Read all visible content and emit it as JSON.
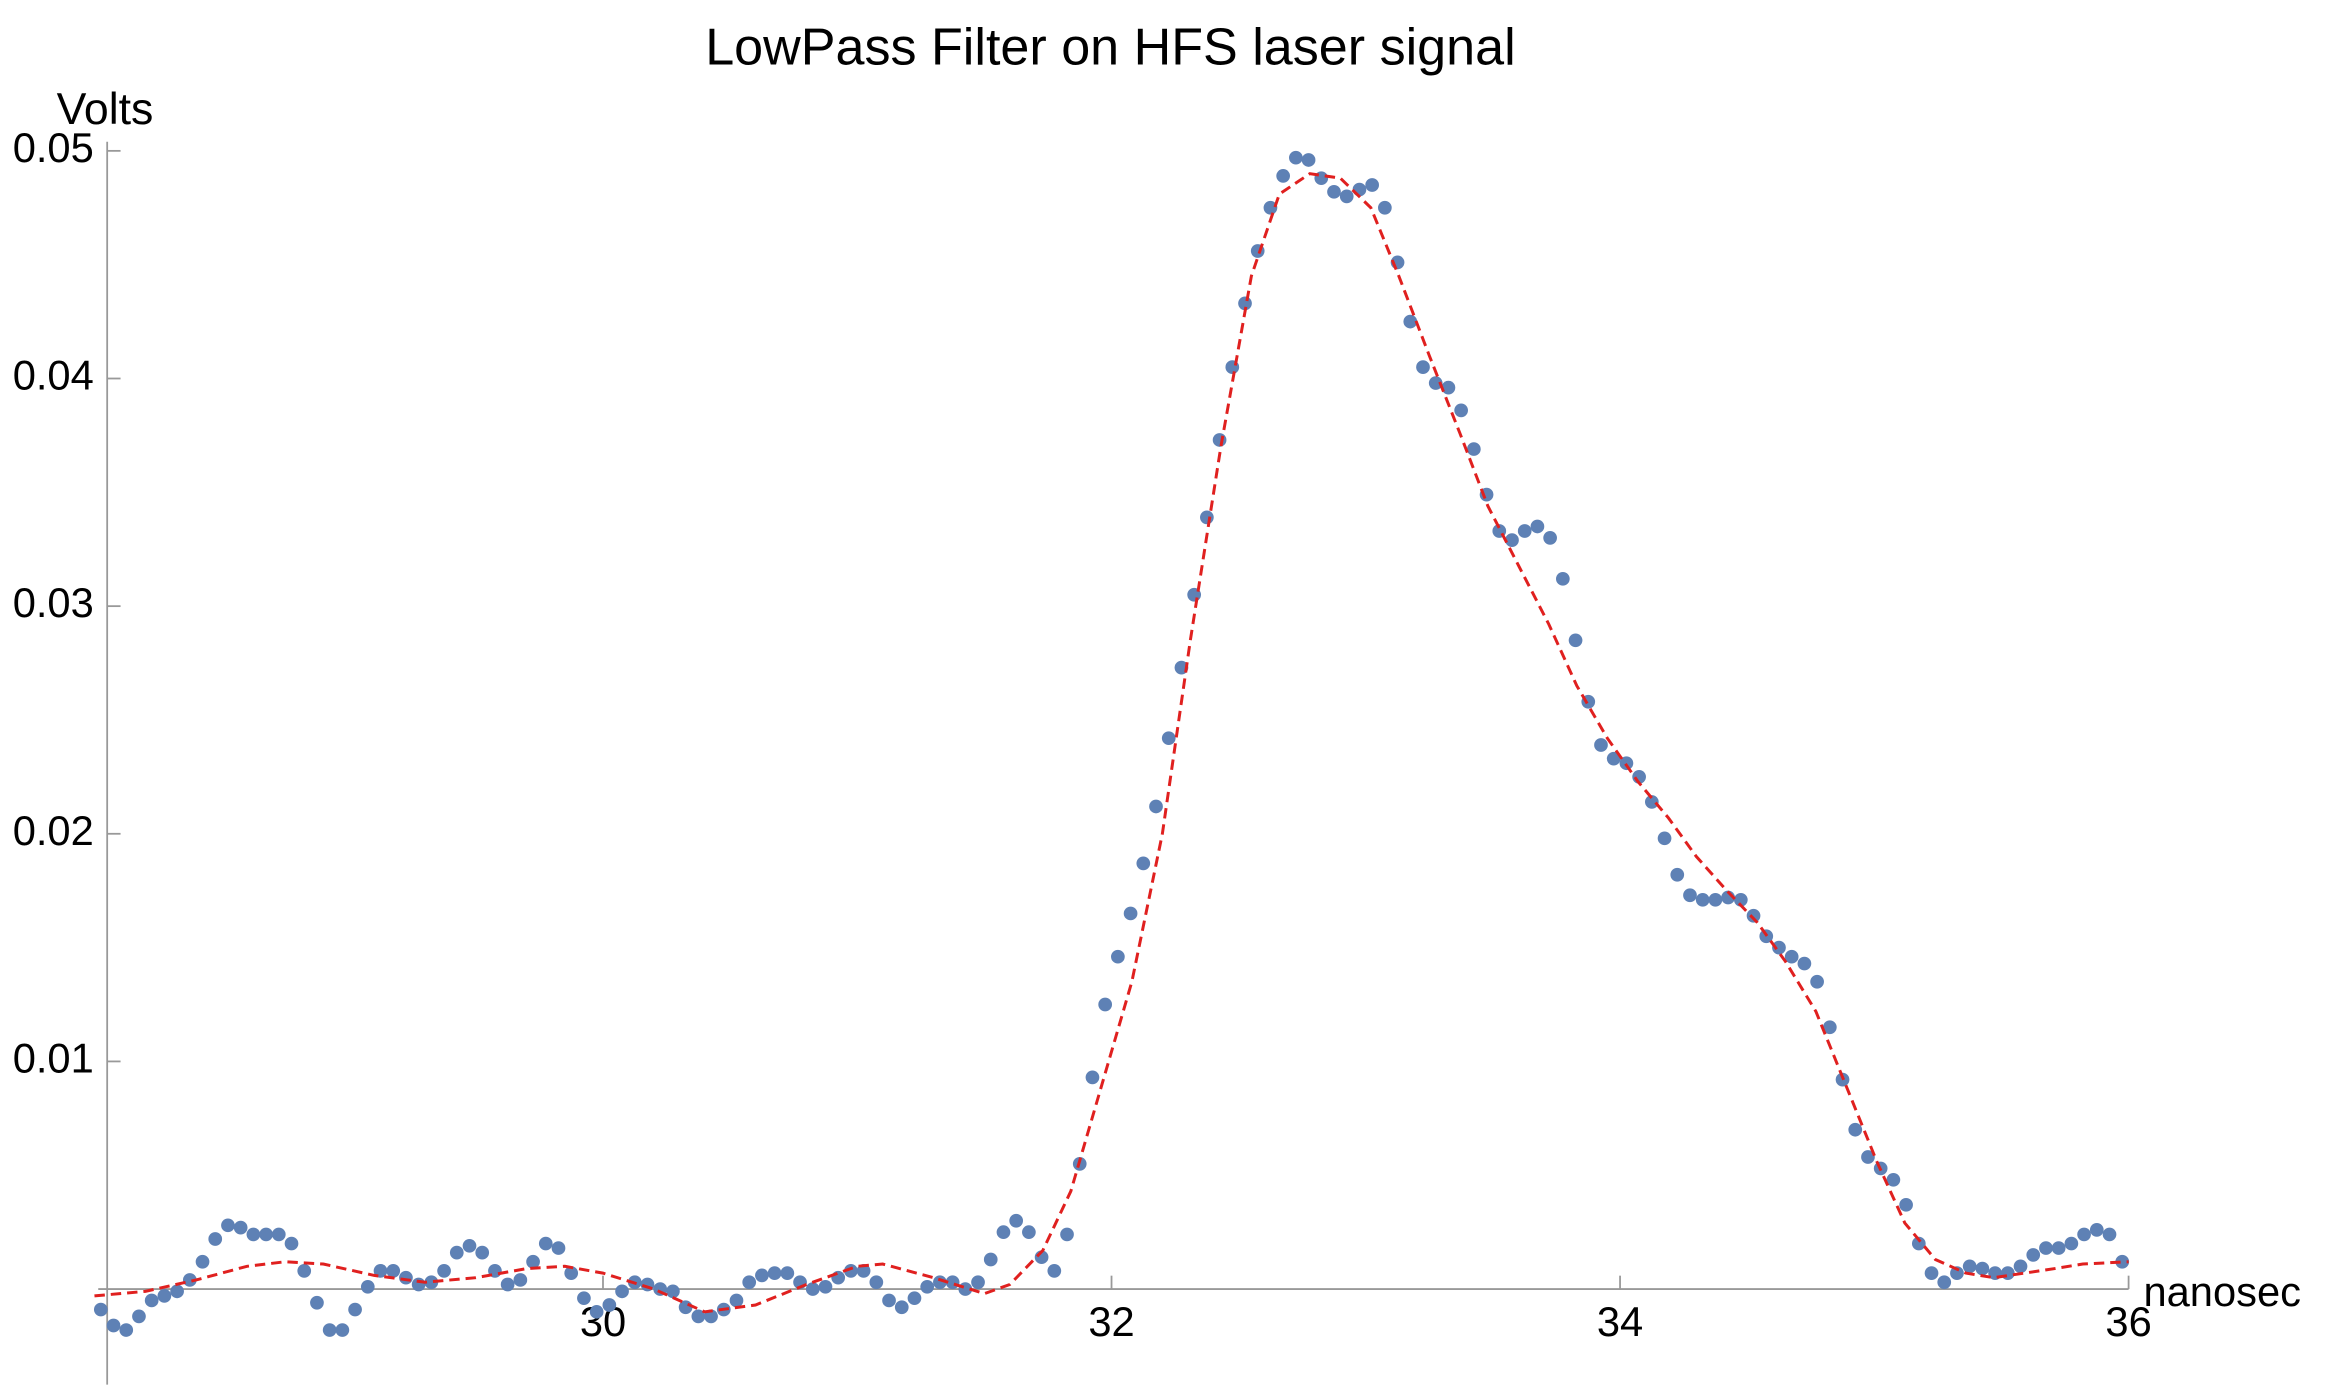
{
  "chart_data": {
    "type": "scatter",
    "title": "LowPass Filter on HFS laser signal",
    "xlabel": "nanosec",
    "ylabel": "Volts",
    "xlim": [
      28.05,
      36
    ],
    "ylim": [
      -0.0042,
      0.0504
    ],
    "xticks": [
      30,
      32,
      34,
      36
    ],
    "yticks": [
      0.01,
      0.02,
      0.03,
      0.04,
      0.05
    ],
    "series": [
      {
        "type": "scatter",
        "color": "#5e81b5",
        "x": [
          28.025,
          28.075,
          28.125,
          28.175,
          28.225,
          28.275,
          28.325,
          28.375,
          28.425,
          28.475,
          28.525,
          28.575,
          28.625,
          28.675,
          28.725,
          28.775,
          28.825,
          28.875,
          28.925,
          28.975,
          29.025,
          29.075,
          29.125,
          29.175,
          29.225,
          29.275,
          29.325,
          29.375,
          29.425,
          29.475,
          29.525,
          29.575,
          29.625,
          29.675,
          29.725,
          29.775,
          29.825,
          29.875,
          29.925,
          29.975,
          30.025,
          30.075,
          30.125,
          30.175,
          30.225,
          30.275,
          30.325,
          30.375,
          30.425,
          30.475,
          30.525,
          30.575,
          30.625,
          30.675,
          30.725,
          30.775,
          30.825,
          30.875,
          30.925,
          30.975,
          31.025,
          31.075,
          31.125,
          31.175,
          31.225,
          31.275,
          31.325,
          31.375,
          31.425,
          31.475,
          31.525,
          31.575,
          31.625,
          31.675,
          31.725,
          31.775,
          31.825,
          31.875,
          31.925,
          31.975,
          32.025,
          32.075,
          32.125,
          32.175,
          32.225,
          32.275,
          32.325,
          32.375,
          32.425,
          32.475,
          32.525,
          32.575,
          32.625,
          32.675,
          32.725,
          32.775,
          32.825,
          32.875,
          32.925,
          32.975,
          33.025,
          33.075,
          33.125,
          33.175,
          33.225,
          33.275,
          33.325,
          33.375,
          33.425,
          33.475,
          33.525,
          33.575,
          33.625,
          33.675,
          33.725,
          33.775,
          33.825,
          33.875,
          33.925,
          33.975,
          34.025,
          34.075,
          34.125,
          34.175,
          34.225,
          34.275,
          34.325,
          34.375,
          34.425,
          34.475,
          34.525,
          34.575,
          34.625,
          34.675,
          34.725,
          34.775,
          34.825,
          34.875,
          34.925,
          34.975,
          35.025,
          35.075,
          35.125,
          35.175,
          35.225,
          35.275,
          35.325,
          35.375,
          35.425,
          35.475,
          35.525,
          35.575,
          35.625,
          35.675,
          35.725,
          35.775,
          35.825,
          35.875,
          35.925,
          35.975
        ],
        "values": [
          -0.0009,
          -0.0016,
          -0.0018,
          -0.0012,
          -0.0005,
          -0.0003,
          -0.0001,
          0.0004,
          0.0012,
          0.0022,
          0.0028,
          0.0027,
          0.0024,
          0.0024,
          0.0024,
          0.002,
          0.0008,
          -0.0006,
          -0.0018,
          -0.0018,
          -0.0009,
          0.0001,
          0.0008,
          0.0008,
          0.0005,
          0.0002,
          0.0003,
          0.0008,
          0.0016,
          0.0019,
          0.0016,
          0.0008,
          0.0002,
          0.0004,
          0.0012,
          0.002,
          0.0018,
          0.0007,
          -0.0004,
          -0.001,
          -0.0007,
          -0.0001,
          0.0003,
          0.0002,
          0,
          -0.0001,
          -0.0008,
          -0.0012,
          -0.0012,
          -0.0009,
          -0.0005,
          0.0003,
          0.0006,
          0.0007,
          0.0007,
          0.0003,
          0,
          0.0001,
          0.0005,
          0.0008,
          0.0008,
          0.0003,
          -0.0005,
          -0.0008,
          -0.0004,
          0.0001,
          0.0003,
          0.0003,
          0,
          0.0003,
          0.0013,
          0.0025,
          0.003,
          0.0025,
          0.0014,
          0.0008,
          0.0024,
          0.0055,
          0.0093,
          0.0125,
          0.0146,
          0.0165,
          0.0187,
          0.0212,
          0.0242,
          0.0273,
          0.0305,
          0.0339,
          0.0373,
          0.0405,
          0.0433,
          0.0456,
          0.0475,
          0.0489,
          0.0497,
          0.0496,
          0.0488,
          0.0482,
          0.048,
          0.0483,
          0.0485,
          0.0475,
          0.0451,
          0.0425,
          0.0405,
          0.0398,
          0.0396,
          0.0386,
          0.0369,
          0.0349,
          0.0333,
          0.0329,
          0.0333,
          0.0335,
          0.033,
          0.0312,
          0.0285,
          0.0258,
          0.0239,
          0.0233,
          0.0231,
          0.0225,
          0.0214,
          0.0198,
          0.0182,
          0.0173,
          0.0171,
          0.0171,
          0.0172,
          0.0171,
          0.0164,
          0.0155,
          0.015,
          0.0146,
          0.0143,
          0.0135,
          0.0115,
          0.0092,
          0.007,
          0.0058,
          0.0053,
          0.0048,
          0.0037,
          0.002,
          0.0007,
          0.0003,
          0.0007,
          0.001,
          0.0009,
          0.0007,
          0.0007,
          0.001,
          0.0015,
          0.0018,
          0.0018,
          0.002,
          0.0024,
          0.0026,
          0.0024,
          0.0012
        ]
      },
      {
        "type": "line",
        "color": "#e0201f",
        "line_style": "dashed",
        "x": [
          28.0,
          28.2,
          28.4,
          28.6,
          28.75,
          28.9,
          29.1,
          29.3,
          29.5,
          29.7,
          29.85,
          30.0,
          30.2,
          30.4,
          30.6,
          30.8,
          31.0,
          31.1,
          31.3,
          31.5,
          31.6,
          31.73,
          31.84,
          31.96,
          32.08,
          32.2,
          32.31,
          32.43,
          32.55,
          32.66,
          32.78,
          32.9,
          33.02,
          33.13,
          33.25,
          33.37,
          33.48,
          33.6,
          33.72,
          33.83,
          33.95,
          34.07,
          34.19,
          34.3,
          34.42,
          34.54,
          34.65,
          34.77,
          34.89,
          35.01,
          35.12,
          35.24,
          35.36,
          35.47,
          35.59,
          35.71,
          35.82,
          36.0
        ],
        "values": [
          -0.0003,
          -0.0001,
          0.0004,
          0.001,
          0.0012,
          0.0011,
          0.0006,
          0.0003,
          0.0005,
          0.0009,
          0.001,
          0.0007,
          0,
          -0.001,
          -0.0007,
          0.0002,
          0.001,
          0.0011,
          0.0005,
          -0.0002,
          0.0002,
          0.0017,
          0.0043,
          0.0089,
          0.0135,
          0.02,
          0.0285,
          0.037,
          0.0445,
          0.0481,
          0.049,
          0.0488,
          0.0475,
          0.0445,
          0.041,
          0.0376,
          0.0344,
          0.0318,
          0.0292,
          0.0265,
          0.0242,
          0.0223,
          0.0207,
          0.019,
          0.0175,
          0.0161,
          0.0144,
          0.0122,
          0.0089,
          0.0056,
          0.0029,
          0.0013,
          0.0007,
          0.0005,
          0.0007,
          0.0009,
          0.0011,
          0.0012
        ]
      }
    ]
  }
}
